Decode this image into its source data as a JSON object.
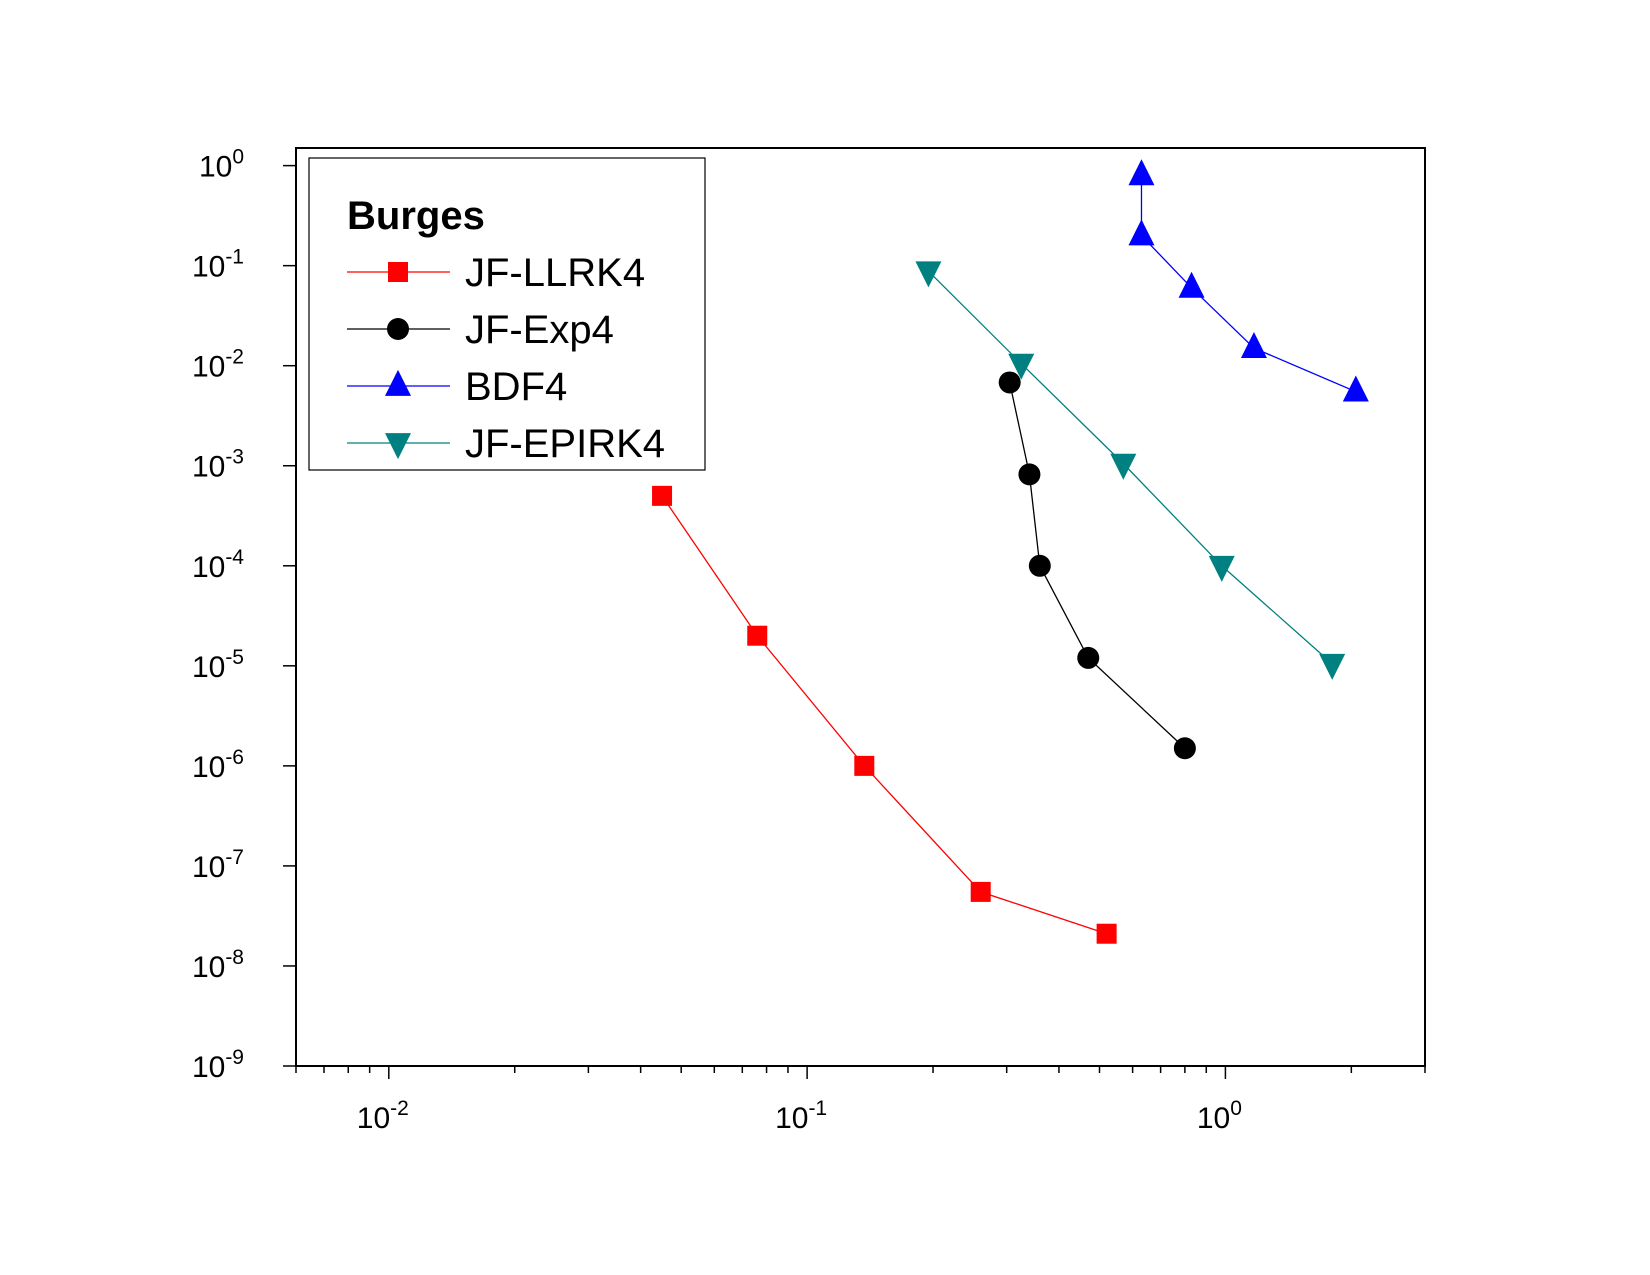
{
  "chart_data": {
    "type": "line",
    "title": "",
    "xlabel": "",
    "ylabel": "",
    "xscale": "log",
    "yscale": "log",
    "xlim": [
      0.006,
      3.0
    ],
    "ylim": [
      1e-09,
      1.5
    ],
    "grid": false,
    "legend": {
      "title": "Burges",
      "position": "top-left"
    },
    "x_ticks": [
      {
        "base": "10",
        "exp": "-2",
        "value": 0.01
      },
      {
        "base": "10",
        "exp": "-1",
        "value": 0.1
      },
      {
        "base": "10",
        "exp": "0",
        "value": 1
      }
    ],
    "y_ticks": [
      {
        "base": "10",
        "exp": "0",
        "value": 1
      },
      {
        "base": "10",
        "exp": "-1",
        "value": 0.1
      },
      {
        "base": "10",
        "exp": "-2",
        "value": 0.01
      },
      {
        "base": "10",
        "exp": "-3",
        "value": 0.001
      },
      {
        "base": "10",
        "exp": "-4",
        "value": 0.0001
      },
      {
        "base": "10",
        "exp": "-5",
        "value": 1e-05
      },
      {
        "base": "10",
        "exp": "-6",
        "value": 1e-06
      },
      {
        "base": "10",
        "exp": "-7",
        "value": 1e-07
      },
      {
        "base": "10",
        "exp": "-8",
        "value": 1e-08
      },
      {
        "base": "10",
        "exp": "-9",
        "value": 1e-09
      }
    ],
    "series": [
      {
        "name": "JF-LLRK4",
        "color": "#ff0000",
        "marker": "square",
        "points": [
          [
            0.045,
            0.0005
          ],
          [
            0.076,
            2e-05
          ],
          [
            0.137,
            1e-06
          ],
          [
            0.26,
            5.5e-08
          ],
          [
            0.52,
            2.1e-08
          ]
        ]
      },
      {
        "name": "JF-Exp4",
        "color": "#000000",
        "marker": "circle",
        "points": [
          [
            0.305,
            0.0068
          ],
          [
            0.34,
            0.00082
          ],
          [
            0.36,
            0.0001
          ],
          [
            0.47,
            1.2e-05
          ],
          [
            0.8,
            1.5e-06
          ]
        ]
      },
      {
        "name": "BDF4",
        "color": "#0000ff",
        "marker": "triangle-up",
        "points": [
          [
            0.63,
            0.8
          ],
          [
            0.63,
            0.2
          ],
          [
            0.83,
            0.06
          ],
          [
            1.17,
            0.015
          ],
          [
            2.05,
            0.0055
          ]
        ]
      },
      {
        "name": "JF-EPIRK4",
        "color": "#008080",
        "marker": "triangle-down",
        "points": [
          [
            0.195,
            0.088
          ],
          [
            0.325,
            0.0105
          ],
          [
            0.57,
            0.00105
          ],
          [
            0.98,
            0.0001
          ],
          [
            1.8,
            1.05e-05
          ]
        ]
      }
    ]
  }
}
